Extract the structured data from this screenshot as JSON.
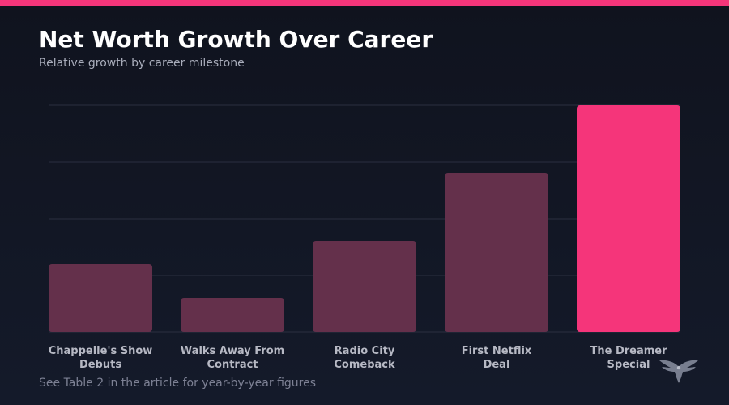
{
  "colors": {
    "accent": "#f5357a",
    "bar": "#64304b",
    "grid": "#2b2f40",
    "tick_label": "#b7b9c4"
  },
  "header": {
    "title": "Net Worth Growth Over Career",
    "subtitle": "Relative growth by career milestone"
  },
  "footer": {
    "note": "See Table 2 in the article for year-by-year figures",
    "logo_icon": "eagle-icon"
  },
  "chart_data": {
    "type": "bar",
    "title": "Net Worth Growth Over Career",
    "subtitle": "Relative growth by career milestone",
    "categories": [
      [
        "Chappelle's Show",
        "Debuts"
      ],
      [
        "Walks Away From",
        "Contract"
      ],
      [
        "Radio City",
        "Comeback"
      ],
      [
        "First Netflix",
        "Deal"
      ],
      [
        "The Dreamer",
        "Special"
      ]
    ],
    "values": [
      30,
      15,
      40,
      70,
      100
    ],
    "highlight_index": 4,
    "ylim": [
      0,
      100
    ],
    "yticks": [
      0,
      25,
      50,
      75,
      100
    ],
    "show_y_tick_labels": false,
    "grid": true,
    "legend": "none"
  }
}
